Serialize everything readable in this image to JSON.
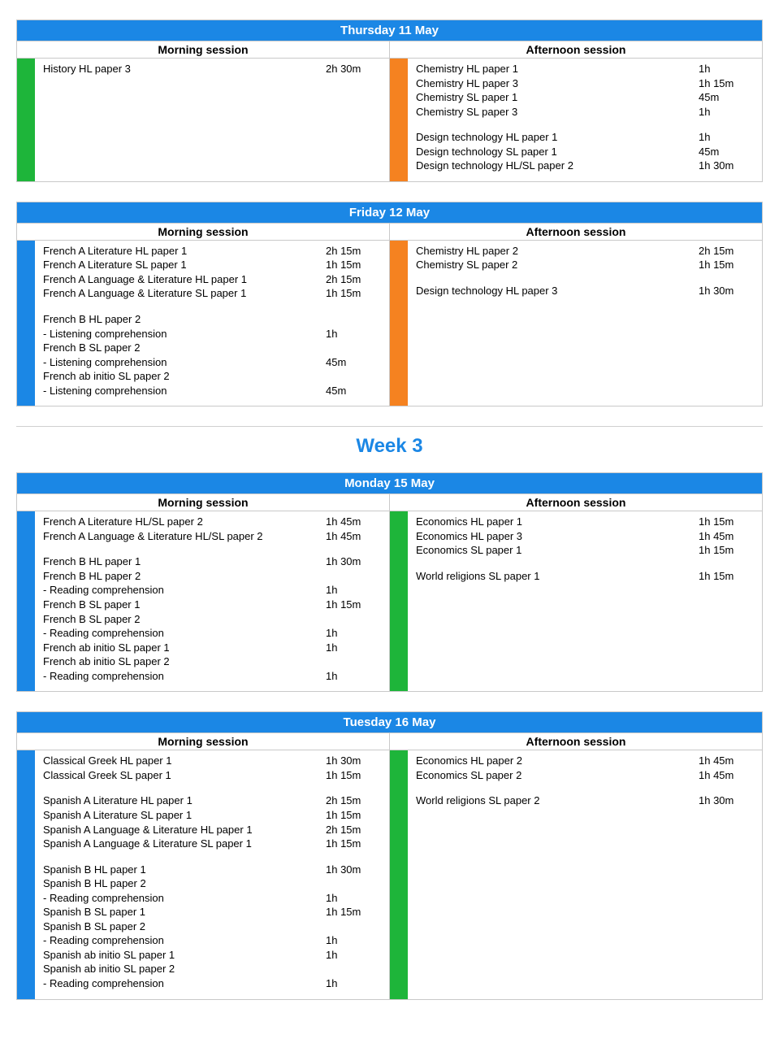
{
  "colors": {
    "header_bg": "#1b87e5",
    "header_fg": "#ffffff",
    "border": "#c9c9c9",
    "bar_green": "#1eb53a",
    "bar_orange": "#f58220",
    "bar_blue": "#1b87e5",
    "week_title": "#1b87e5"
  },
  "labels": {
    "morning": "Morning session",
    "afternoon": "Afternoon session",
    "week3": "Week 3"
  },
  "days": [
    {
      "title": "Thursday 11 May",
      "morning": {
        "bar_color": "#1eb53a",
        "rows": [
          {
            "subject": "History HL paper 3",
            "duration": "2h 30m"
          }
        ]
      },
      "afternoon": {
        "bar_color": "#f58220",
        "rows": [
          {
            "subject": "Chemistry HL paper 1",
            "duration": "1h"
          },
          {
            "subject": "Chemistry HL paper 3",
            "duration": "1h 15m"
          },
          {
            "subject": "Chemistry SL paper 1",
            "duration": "45m"
          },
          {
            "subject": "Chemistry SL paper 3",
            "duration": "1h"
          },
          {
            "spacer": true
          },
          {
            "subject": "Design technology HL paper 1",
            "duration": "1h"
          },
          {
            "subject": "Design technology SL paper 1",
            "duration": "45m"
          },
          {
            "subject": "Design technology HL/SL paper 2",
            "duration": "1h 30m"
          }
        ]
      }
    },
    {
      "title": "Friday 12 May",
      "morning": {
        "bar_color": "#1b87e5",
        "rows": [
          {
            "subject": "French A Literature HL paper 1",
            "duration": "2h 15m"
          },
          {
            "subject": "French A Literature SL paper 1",
            "duration": "1h 15m"
          },
          {
            "subject": "French A Language & Literature HL paper 1",
            "duration": "2h 15m"
          },
          {
            "subject": "French A Language & Literature SL paper 1",
            "duration": "1h 15m"
          },
          {
            "spacer": true
          },
          {
            "subject": "French B HL paper 2",
            "duration": ""
          },
          {
            "subject": "- Listening comprehension",
            "duration": "1h"
          },
          {
            "subject": "French B SL paper 2",
            "duration": ""
          },
          {
            "subject": "- Listening comprehension",
            "duration": "45m"
          },
          {
            "subject": "French ab initio SL paper 2",
            "duration": ""
          },
          {
            "subject": "- Listening comprehension",
            "duration": "45m"
          }
        ]
      },
      "afternoon": {
        "bar_color": "#f58220",
        "rows": [
          {
            "subject": "Chemistry HL paper 2",
            "duration": "2h 15m"
          },
          {
            "subject": "Chemistry SL paper 2",
            "duration": "1h 15m"
          },
          {
            "spacer": true
          },
          {
            "subject": "Design technology HL paper 3",
            "duration": "1h 30m"
          }
        ]
      }
    },
    {
      "title": "Monday 15 May",
      "morning": {
        "bar_color": "#1b87e5",
        "rows": [
          {
            "subject": "French A Literature HL/SL paper 2",
            "duration": "1h 45m"
          },
          {
            "subject": "French A Language & Literature HL/SL paper 2",
            "duration": "1h 45m"
          },
          {
            "spacer": true
          },
          {
            "subject": "French B HL paper 1",
            "duration": "1h 30m"
          },
          {
            "subject": "French B HL paper 2",
            "duration": ""
          },
          {
            "subject": "- Reading comprehension",
            "duration": "1h"
          },
          {
            "subject": "French B SL paper 1",
            "duration": "1h 15m"
          },
          {
            "subject": "French B SL paper 2",
            "duration": ""
          },
          {
            "subject": "- Reading comprehension",
            "duration": "1h"
          },
          {
            "subject": "French ab initio SL paper 1",
            "duration": "1h"
          },
          {
            "subject": "French ab initio SL paper 2",
            "duration": ""
          },
          {
            "subject": "- Reading comprehension",
            "duration": "1h"
          }
        ]
      },
      "afternoon": {
        "bar_color": "#1eb53a",
        "rows": [
          {
            "subject": "Economics HL paper 1",
            "duration": "1h 15m"
          },
          {
            "subject": "Economics HL paper 3",
            "duration": "1h 45m"
          },
          {
            "subject": "Economics SL paper 1",
            "duration": "1h 15m"
          },
          {
            "spacer": true
          },
          {
            "subject": "World religions SL paper 1",
            "duration": "1h 15m"
          }
        ]
      }
    },
    {
      "title": "Tuesday 16 May",
      "morning": {
        "bar_color": "#1b87e5",
        "rows": [
          {
            "subject": "Classical Greek HL paper 1",
            "duration": "1h 30m"
          },
          {
            "subject": "Classical Greek SL paper 1",
            "duration": "1h 15m"
          },
          {
            "spacer": true
          },
          {
            "subject": "Spanish A Literature HL paper 1",
            "duration": "2h 15m"
          },
          {
            "subject": "Spanish A Literature SL paper 1",
            "duration": "1h 15m"
          },
          {
            "subject": "Spanish A Language & Literature HL paper 1",
            "duration": "2h 15m"
          },
          {
            "subject": "Spanish A Language & Literature SL paper 1",
            "duration": "1h 15m"
          },
          {
            "spacer": true
          },
          {
            "subject": "Spanish B HL paper 1",
            "duration": "1h 30m"
          },
          {
            "subject": "Spanish B HL paper 2",
            "duration": ""
          },
          {
            "subject": "- Reading comprehension",
            "duration": "1h"
          },
          {
            "subject": "Spanish B SL paper 1",
            "duration": "1h 15m"
          },
          {
            "subject": "Spanish B SL paper 2",
            "duration": ""
          },
          {
            "subject": "- Reading comprehension",
            "duration": "1h"
          },
          {
            "subject": "Spanish ab initio SL paper 1",
            "duration": "1h"
          },
          {
            "subject": "Spanish ab initio SL paper 2",
            "duration": ""
          },
          {
            "subject": "- Reading comprehension",
            "duration": "1h"
          }
        ]
      },
      "afternoon": {
        "bar_color": "#1eb53a",
        "rows": [
          {
            "subject": "Economics HL paper 2",
            "duration": "1h 45m"
          },
          {
            "subject": "Economics SL paper 2",
            "duration": "1h 45m"
          },
          {
            "spacer": true
          },
          {
            "subject": "World religions SL paper 2",
            "duration": "1h 30m"
          }
        ]
      }
    }
  ],
  "week_break_after_index": 1
}
